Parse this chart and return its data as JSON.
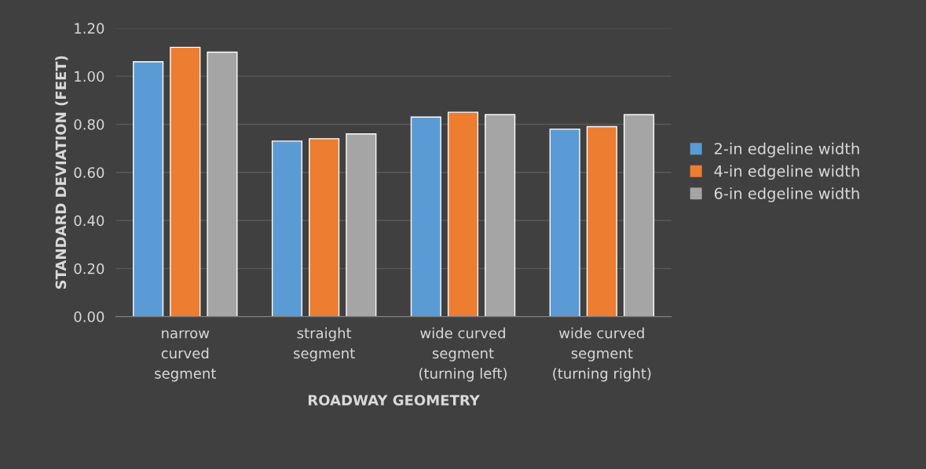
{
  "chart_data": {
    "type": "bar",
    "xlabel": "ROADWAY GEOMETRY",
    "ylabel": "STANDARD DEVIATION (FEET)",
    "categories": [
      "narrow\ncurved\nsegment",
      "straight\nsegment",
      "wide curved\nsegment\n(turning left)",
      "wide curved\nsegment\n(turning right)"
    ],
    "series": [
      {
        "name": "2-in edgeline width",
        "color": "#5b9bd5",
        "values": [
          1.06,
          0.73,
          0.83,
          0.78
        ]
      },
      {
        "name": "4-in edgeline width",
        "color": "#ed7d31",
        "values": [
          1.12,
          0.74,
          0.85,
          0.79
        ]
      },
      {
        "name": "6-in edgeline width",
        "color": "#a5a5a5",
        "values": [
          1.1,
          0.76,
          0.84,
          0.84
        ]
      }
    ],
    "ylim": [
      0,
      1.2
    ],
    "yticks": [
      {
        "value": 0,
        "label": "0.00"
      },
      {
        "value": 0.2,
        "label": "0.20"
      },
      {
        "value": 0.4,
        "label": "0.40"
      },
      {
        "value": 0.6,
        "label": "0.60"
      },
      {
        "value": 0.8,
        "label": "0.80"
      },
      {
        "value": 1.0,
        "label": "1.00"
      },
      {
        "value": 1.2,
        "label": "1.20"
      }
    ],
    "grid": "y",
    "legend": "right"
  }
}
